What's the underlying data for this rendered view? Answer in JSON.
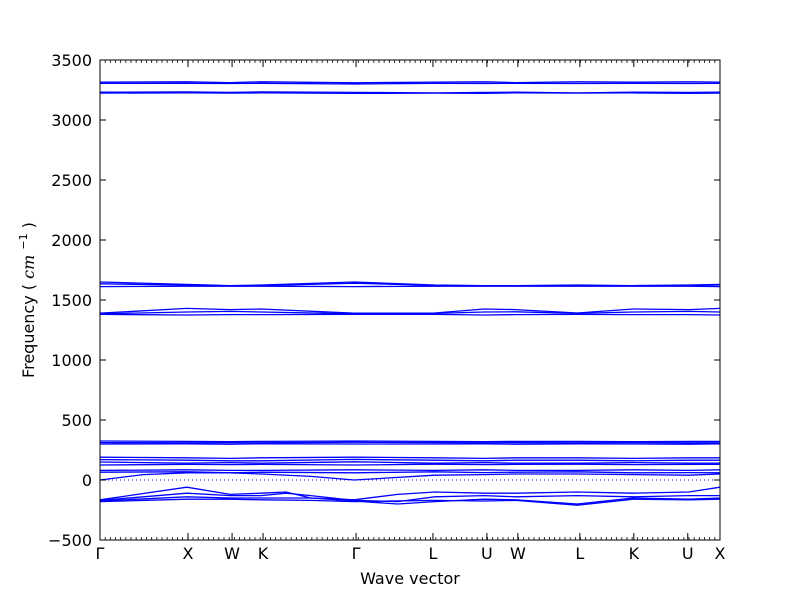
{
  "chart_data": {
    "type": "line",
    "title": "",
    "xlabel": "Wave vector",
    "ylabel": "Frequency",
    "ylabel_unit": "cm",
    "ylabel_unit_exp": "−1",
    "ylim": [
      -500,
      3500
    ],
    "yticks": [
      -500,
      0,
      500,
      1000,
      1500,
      2000,
      2500,
      3000,
      3500
    ],
    "xlim": [
      0,
      1
    ],
    "xticks": [
      {
        "label": "Γ",
        "x": 0.0
      },
      {
        "label": "X",
        "x": 0.142
      },
      {
        "label": "W",
        "x": 0.213
      },
      {
        "label": "K",
        "x": 0.263
      },
      {
        "label": "Γ",
        "x": 0.413
      },
      {
        "label": "L",
        "x": 0.537
      },
      {
        "label": "U",
        "x": 0.624
      },
      {
        "label": "W",
        "x": 0.674
      },
      {
        "label": "L",
        "x": 0.774
      },
      {
        "label": "K",
        "x": 0.861
      },
      {
        "label": "U",
        "x": 0.948
      },
      {
        "label": "X",
        "x": 1.0
      }
    ],
    "minor_xtick_count": 120,
    "zero_line": true,
    "grid": false,
    "line_color": "#0000ff",
    "series": [
      {
        "x": [
          0,
          0.14,
          0.21,
          0.26,
          0.41,
          0.54,
          0.62,
          0.67,
          0.77,
          0.86,
          0.95,
          1
        ],
        "values": [
          3315,
          3318,
          3312,
          3318,
          3310,
          3316,
          3318,
          3312,
          3318,
          3316,
          3318,
          3315
        ]
      },
      {
        "x": [
          0,
          0.14,
          0.21,
          0.26,
          0.41,
          0.54,
          0.62,
          0.67,
          0.77,
          0.86,
          0.95,
          1
        ],
        "values": [
          3305,
          3306,
          3304,
          3306,
          3300,
          3306,
          3304,
          3306,
          3304,
          3306,
          3304,
          3305
        ]
      },
      {
        "x": [
          0,
          0.14,
          0.21,
          0.26,
          0.41,
          0.54,
          0.62,
          0.67,
          0.77,
          0.86,
          0.95,
          1
        ],
        "values": [
          3232,
          3234,
          3230,
          3234,
          3230,
          3226,
          3230,
          3232,
          3226,
          3232,
          3230,
          3232
        ]
      },
      {
        "x": [
          0,
          0.14,
          0.21,
          0.26,
          0.41,
          0.54,
          0.62,
          0.67,
          0.77,
          0.86,
          0.95,
          1
        ],
        "values": [
          3224,
          3226,
          3224,
          3226,
          3222,
          3224,
          3222,
          3226,
          3224,
          3226,
          3222,
          3224
        ]
      },
      {
        "x": [
          0,
          0.14,
          0.21,
          0.26,
          0.41,
          0.54,
          0.62,
          0.67,
          0.77,
          0.86,
          0.95,
          1
        ],
        "values": [
          1650,
          1630,
          1620,
          1625,
          1650,
          1625,
          1620,
          1620,
          1625,
          1620,
          1625,
          1630
        ]
      },
      {
        "x": [
          0,
          0.14,
          0.21,
          0.26,
          0.41,
          0.54,
          0.62,
          0.67,
          0.77,
          0.86,
          0.95,
          1
        ],
        "values": [
          1635,
          1625,
          1618,
          1620,
          1640,
          1622,
          1618,
          1618,
          1620,
          1618,
          1620,
          1625
        ]
      },
      {
        "x": [
          0,
          0.14,
          0.21,
          0.26,
          0.41,
          0.54,
          0.62,
          0.67,
          0.77,
          0.86,
          0.95,
          1
        ],
        "values": [
          1612,
          1615,
          1615,
          1615,
          1612,
          1615,
          1615,
          1615,
          1615,
          1615,
          1615,
          1612
        ]
      },
      {
        "x": [
          0,
          0.14,
          0.21,
          0.26,
          0.41,
          0.54,
          0.62,
          0.67,
          0.77,
          0.86,
          0.95,
          1
        ],
        "values": [
          1390,
          1430,
          1420,
          1425,
          1390,
          1392,
          1425,
          1420,
          1392,
          1425,
          1420,
          1430
        ]
      },
      {
        "x": [
          0,
          0.14,
          0.21,
          0.26,
          0.41,
          0.54,
          0.62,
          0.67,
          0.77,
          0.86,
          0.95,
          1
        ],
        "values": [
          1385,
          1400,
          1405,
          1400,
          1385,
          1388,
          1400,
          1402,
          1388,
          1400,
          1405,
          1400
        ]
      },
      {
        "x": [
          0,
          0.14,
          0.21,
          0.26,
          0.41,
          0.54,
          0.62,
          0.67,
          0.77,
          0.86,
          0.95,
          1
        ],
        "values": [
          1380,
          1375,
          1378,
          1378,
          1380,
          1380,
          1375,
          1378,
          1380,
          1378,
          1378,
          1375
        ]
      },
      {
        "x": [
          0,
          0.14,
          0.21,
          0.26,
          0.41,
          0.54,
          0.62,
          0.67,
          0.77,
          0.86,
          0.95,
          1
        ],
        "values": [
          325,
          322,
          320,
          322,
          325,
          322,
          320,
          322,
          322,
          320,
          322,
          322
        ]
      },
      {
        "x": [
          0,
          0.14,
          0.21,
          0.26,
          0.41,
          0.54,
          0.62,
          0.67,
          0.77,
          0.86,
          0.95,
          1
        ],
        "values": [
          312,
          310,
          312,
          310,
          315,
          312,
          310,
          312,
          310,
          312,
          310,
          310
        ]
      },
      {
        "x": [
          0,
          0.14,
          0.21,
          0.26,
          0.41,
          0.54,
          0.62,
          0.67,
          0.77,
          0.86,
          0.95,
          1
        ],
        "values": [
          300,
          302,
          298,
          302,
          300,
          300,
          302,
          298,
          302,
          300,
          298,
          302
        ]
      },
      {
        "x": [
          0,
          0.14,
          0.21,
          0.26,
          0.41,
          0.54,
          0.62,
          0.67,
          0.77,
          0.86,
          0.95,
          1
        ],
        "values": [
          190,
          185,
          180,
          185,
          190,
          185,
          180,
          185,
          185,
          180,
          185,
          185
        ]
      },
      {
        "x": [
          0,
          0.14,
          0.21,
          0.26,
          0.41,
          0.54,
          0.62,
          0.67,
          0.77,
          0.86,
          0.95,
          1
        ],
        "values": [
          170,
          165,
          160,
          160,
          172,
          165,
          160,
          165,
          165,
          160,
          165,
          165
        ]
      },
      {
        "x": [
          0,
          0.14,
          0.21,
          0.26,
          0.41,
          0.54,
          0.62,
          0.67,
          0.77,
          0.86,
          0.95,
          1
        ],
        "values": [
          150,
          140,
          145,
          140,
          152,
          140,
          145,
          140,
          140,
          145,
          140,
          140
        ]
      },
      {
        "x": [
          0,
          0.14,
          0.21,
          0.26,
          0.41,
          0.54,
          0.62,
          0.67,
          0.77,
          0.86,
          0.95,
          1
        ],
        "values": [
          125,
          130,
          128,
          130,
          125,
          132,
          128,
          130,
          132,
          128,
          130,
          130
        ]
      },
      {
        "x": [
          0,
          0.14,
          0.21,
          0.26,
          0.41,
          0.54,
          0.62,
          0.67,
          0.77,
          0.86,
          0.95,
          1
        ],
        "values": [
          80,
          85,
          80,
          80,
          85,
          80,
          85,
          80,
          80,
          85,
          80,
          85
        ]
      },
      {
        "x": [
          0,
          0.14,
          0.21,
          0.26,
          0.41,
          0.54,
          0.62,
          0.67,
          0.77,
          0.86,
          0.95,
          1
        ],
        "values": [
          65,
          68,
          60,
          65,
          60,
          68,
          62,
          65,
          68,
          60,
          62,
          60
        ]
      },
      {
        "x": [
          0,
          0.07,
          0.14,
          0.21,
          0.26,
          0.34,
          0.41,
          0.54,
          0.62,
          0.67,
          0.77,
          0.86,
          0.95,
          1
        ],
        "values": [
          0,
          45,
          60,
          60,
          50,
          30,
          0,
          40,
          45,
          50,
          50,
          45,
          40,
          50
        ]
      },
      {
        "x": [
          0,
          0.14,
          0.21,
          0.26,
          0.3,
          0.34,
          0.41,
          0.48,
          0.54,
          0.62,
          0.67,
          0.77,
          0.86,
          0.95,
          1
        ],
        "values": [
          -165,
          -60,
          -120,
          -110,
          -100,
          -150,
          -165,
          -120,
          -100,
          -110,
          -110,
          -100,
          -110,
          -100,
          -60
        ]
      },
      {
        "x": [
          0,
          0.14,
          0.21,
          0.26,
          0.3,
          0.34,
          0.41,
          0.48,
          0.54,
          0.62,
          0.67,
          0.77,
          0.86,
          0.95,
          1
        ],
        "values": [
          -170,
          -110,
          -130,
          -130,
          -110,
          -130,
          -170,
          -180,
          -140,
          -130,
          -140,
          -130,
          -140,
          -130,
          -130
        ]
      },
      {
        "x": [
          0,
          0.14,
          0.21,
          0.26,
          0.34,
          0.41,
          0.48,
          0.54,
          0.62,
          0.67,
          0.77,
          0.86,
          0.95,
          1
        ],
        "values": [
          -175,
          -140,
          -150,
          -150,
          -150,
          -175,
          -200,
          -180,
          -160,
          -165,
          -200,
          -150,
          -160,
          -150
        ]
      },
      {
        "x": [
          0,
          0.14,
          0.21,
          0.26,
          0.34,
          0.41,
          0.54,
          0.62,
          0.67,
          0.77,
          0.86,
          0.95,
          1
        ],
        "values": [
          -180,
          -160,
          -160,
          -165,
          -170,
          -180,
          -170,
          -175,
          -170,
          -210,
          -160,
          -165,
          -160
        ]
      }
    ]
  }
}
